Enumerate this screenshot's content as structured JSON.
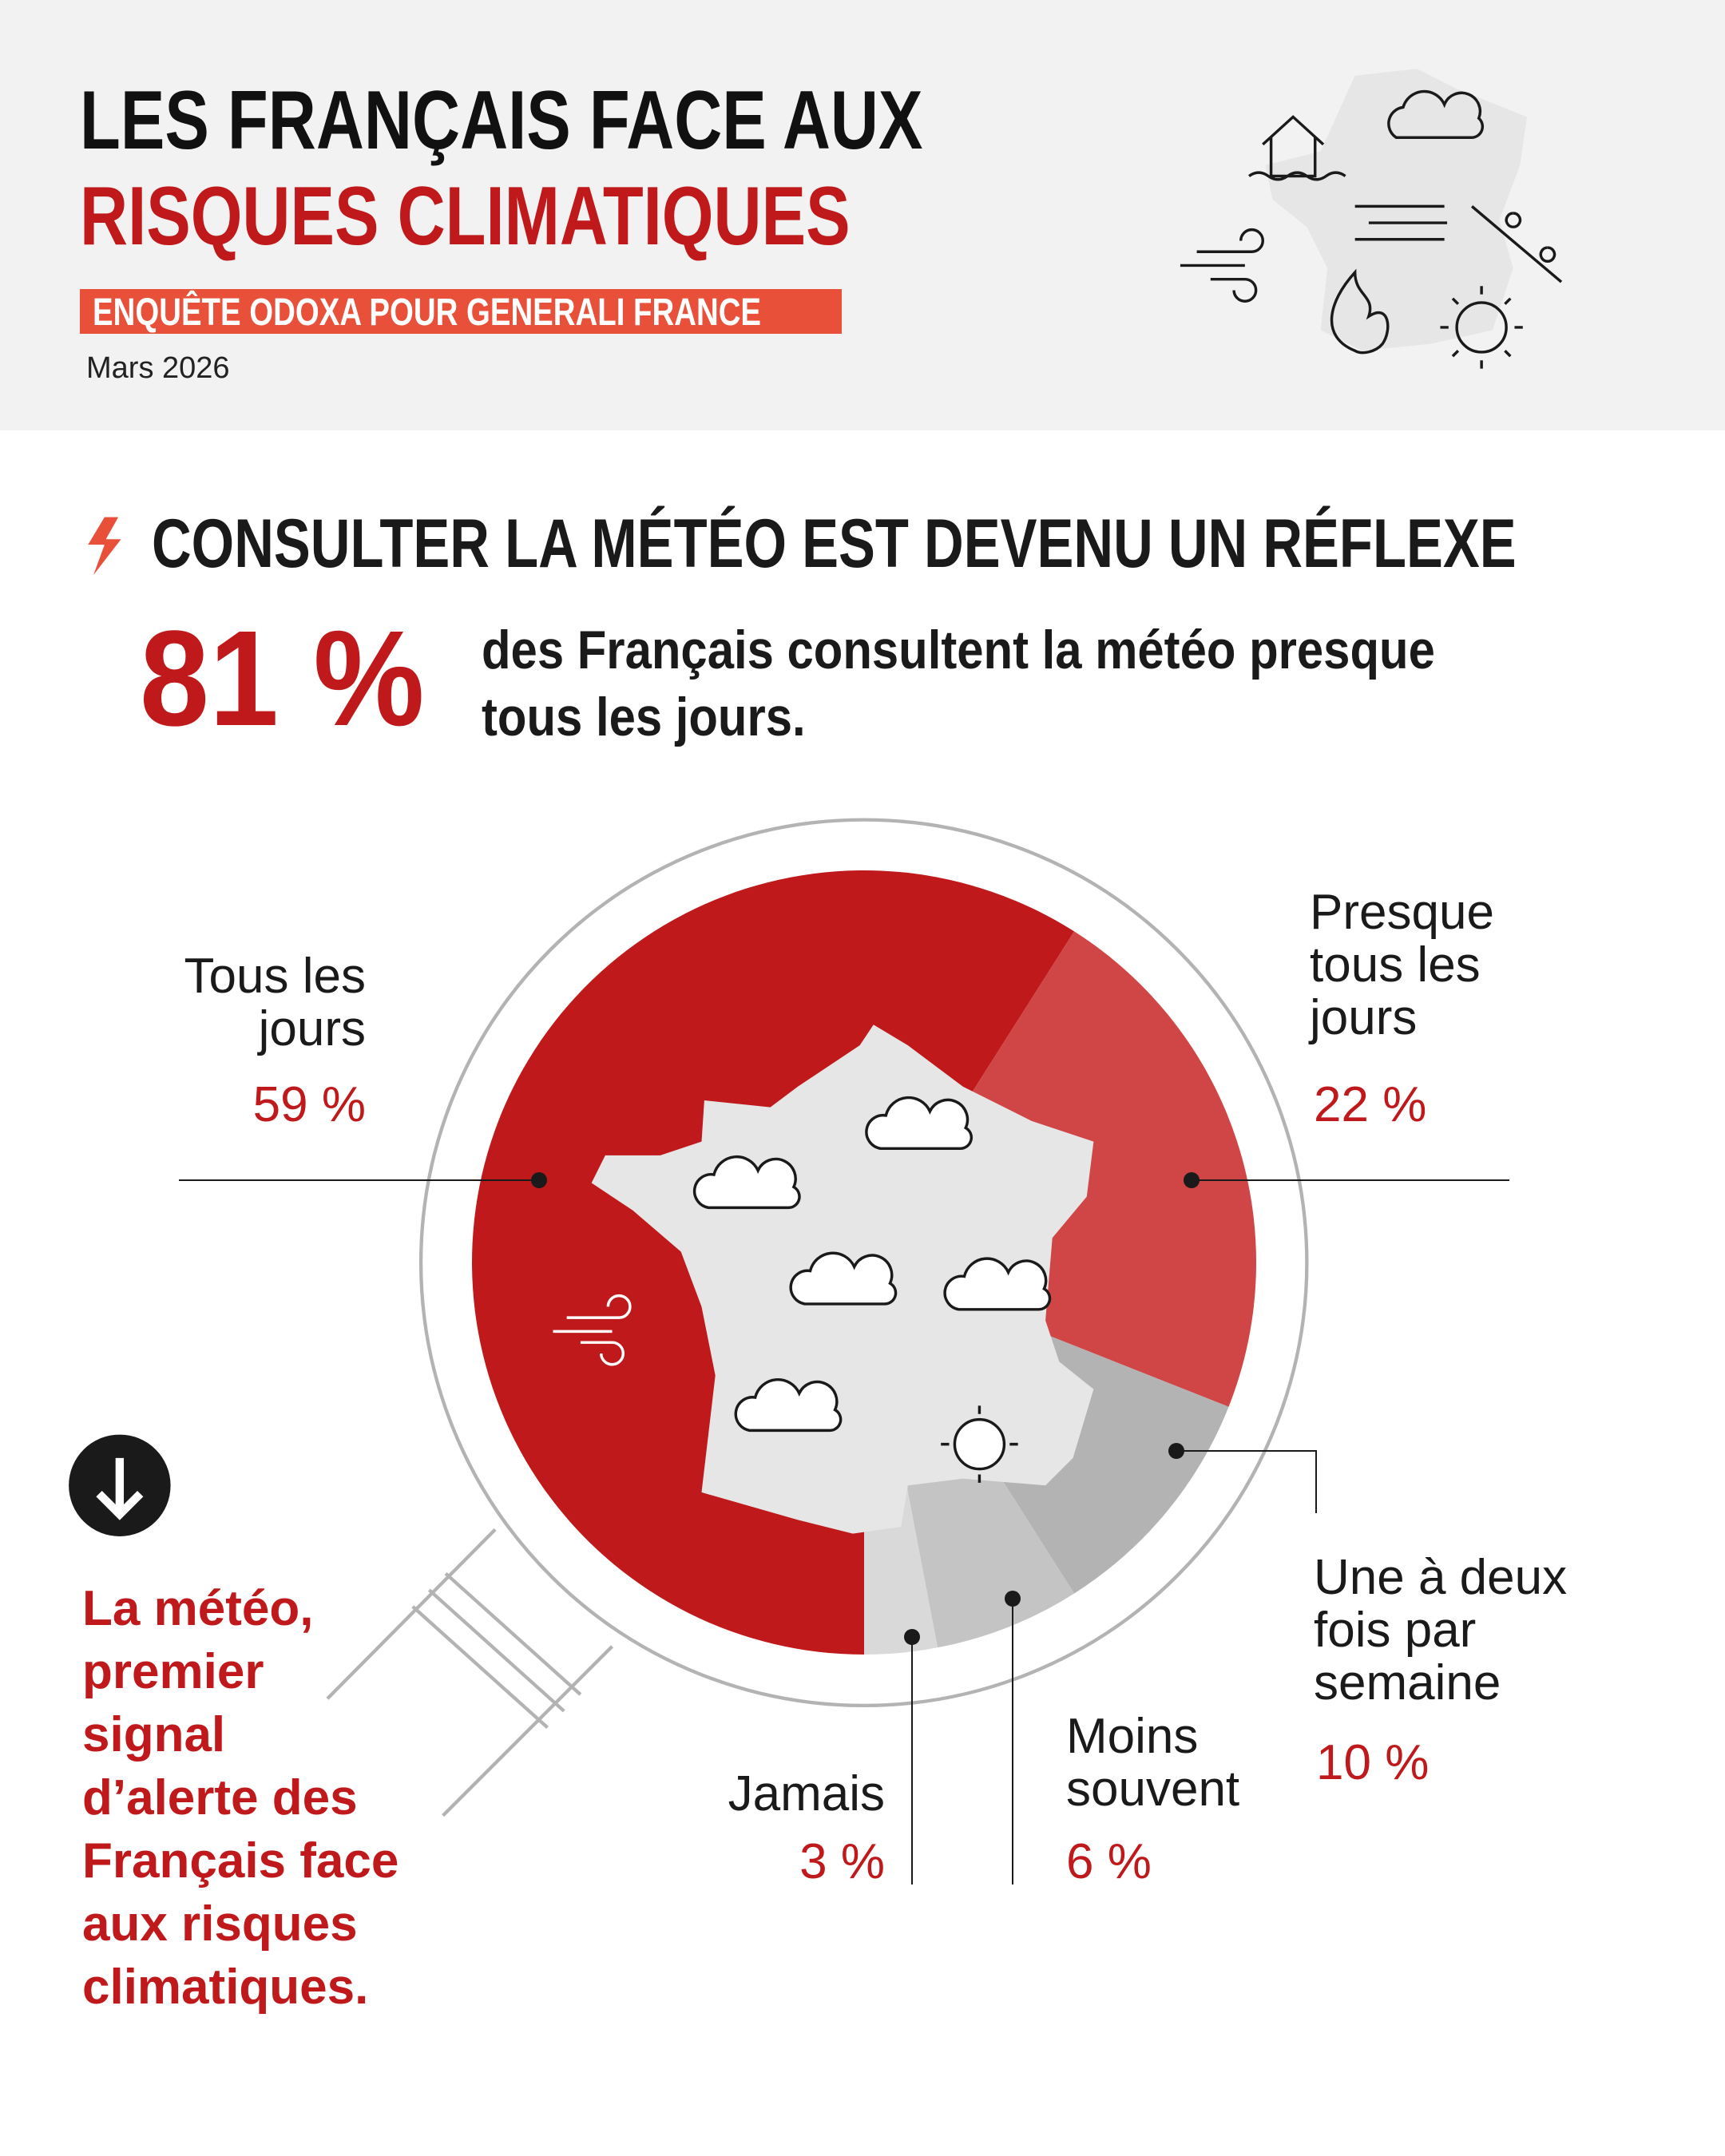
{
  "header": {
    "title_line1": "LES FRANÇAIS FACE AUX",
    "title_line2": "RISQUES CLIMATIQUES",
    "subtitle": "ENQUÊTE ODOXA POUR GENERALI FRANCE",
    "date": "Mars 2026"
  },
  "section": {
    "title": "CONSULTER LA MÉTÉO EST DEVENU UN RÉFLEXE",
    "figure": "81 %",
    "text_lines": [
      "des Français consultent la météo presque",
      "tous les jours."
    ]
  },
  "chart_data": {
    "type": "pie",
    "categories": [
      "Tous les jours",
      "Presque tous les jours",
      "Une à deux fois par semaine",
      "Moins souvent",
      "Jamais"
    ],
    "values": [
      59,
      22,
      10,
      6,
      3
    ],
    "value_labels": [
      "59 %",
      "22 %",
      "10 %",
      "6 %",
      "3 %"
    ],
    "colors": [
      "#c0191b",
      "#d04545",
      "#b3b3b3",
      "#c4c4c4",
      "#d9d9d9"
    ]
  },
  "note": {
    "lines": [
      "La météo,",
      "premier",
      "signal",
      "d’alerte des",
      "Français face",
      "aux risques",
      "climatiques."
    ]
  }
}
